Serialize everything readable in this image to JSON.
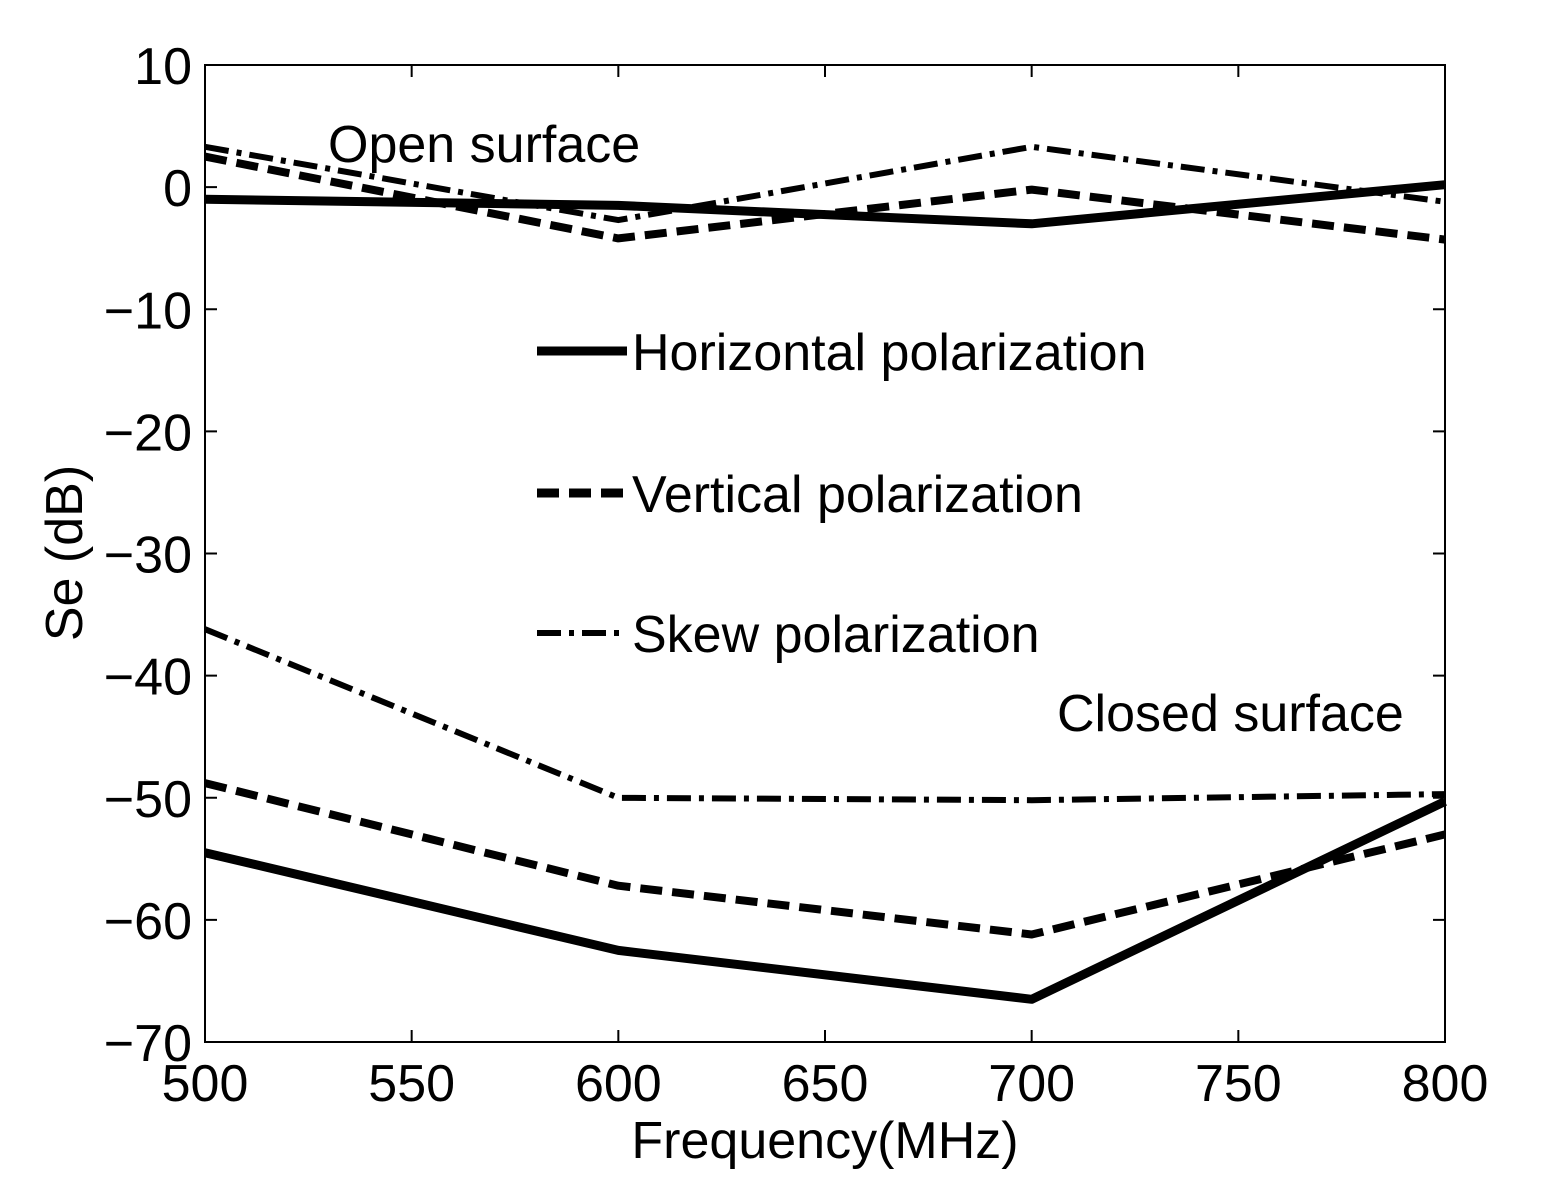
{
  "chart_data": {
    "type": "line",
    "xlabel": "Frequency(MHz)",
    "ylabel": "Se (dB)",
    "xlim": [
      500,
      800
    ],
    "ylim": [
      -70,
      10
    ],
    "x_ticks": [
      500,
      550,
      600,
      650,
      700,
      750,
      800
    ],
    "y_ticks": [
      10,
      0,
      -10,
      -20,
      -30,
      -40,
      -50,
      -60,
      -70
    ],
    "x_tick_labels": [
      "500",
      "550",
      "600",
      "650",
      "700",
      "750",
      "800"
    ],
    "y_tick_labels": [
      "10",
      "0",
      "−10",
      "−20",
      "−30",
      "−40",
      "−50",
      "−60",
      "−70"
    ],
    "grid": false,
    "legend_position": "center",
    "x": [
      500,
      600,
      700,
      800
    ],
    "legend": [
      {
        "name": "Horizontal polarization",
        "style": "solid"
      },
      {
        "name": "Vertical polarization",
        "style": "dashed"
      },
      {
        "name": "Skew polarization",
        "style": "dashdot"
      }
    ],
    "annotations": {
      "open_surface": "Open surface",
      "closed_surface": "Closed surface"
    },
    "series": [
      {
        "group": "open",
        "style": "solid",
        "values": [
          -1.0,
          -1.5,
          -3.0,
          0.2
        ]
      },
      {
        "group": "open",
        "style": "dashed",
        "values": [
          2.5,
          -4.2,
          -0.2,
          -4.3
        ]
      },
      {
        "group": "open",
        "style": "dashdot",
        "values": [
          3.3,
          -2.7,
          3.3,
          -1.2
        ]
      },
      {
        "group": "closed",
        "style": "solid",
        "values": [
          -54.5,
          -62.5,
          -66.5,
          -50.3
        ]
      },
      {
        "group": "closed",
        "style": "dashed",
        "values": [
          -48.8,
          -57.2,
          -61.2,
          -53.0
        ]
      },
      {
        "group": "closed",
        "style": "dashdot",
        "values": [
          -36.2,
          -50.0,
          -50.2,
          -49.7
        ]
      }
    ],
    "colors": {
      "line": "#000000",
      "background": "#ffffff"
    }
  }
}
